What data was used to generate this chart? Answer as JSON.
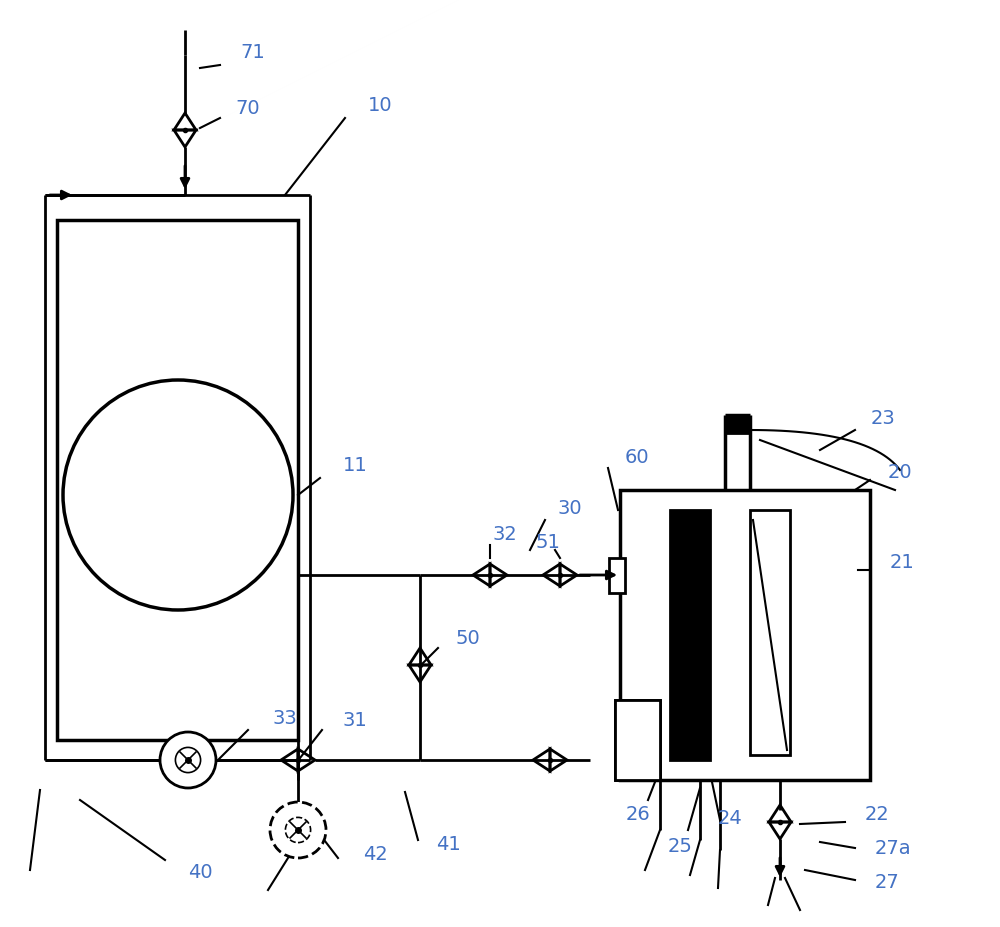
{
  "bg_color": "#ffffff",
  "line_color": "#000000",
  "label_color": "#4472c4",
  "label_fontsize": 14,
  "figsize": [
    10.0,
    9.27
  ],
  "dpi": 100
}
